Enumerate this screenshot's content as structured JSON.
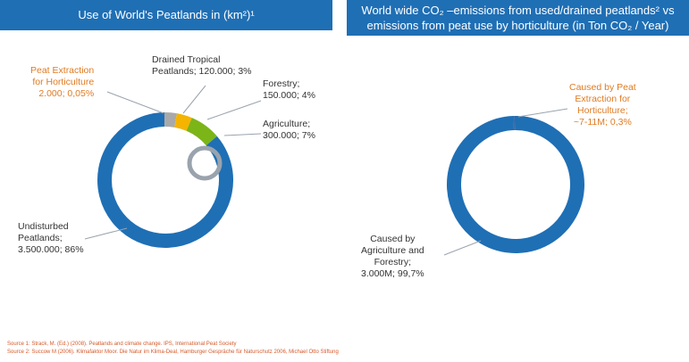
{
  "colors": {
    "title_bg": "#1f6fb5",
    "undisturbed": "#1f6fb5",
    "peat_extraction": "#3b6ea5",
    "drained_tropical": "#a9a9a9",
    "forestry": "#f4b400",
    "agriculture": "#7cb518",
    "highlight_text": "#e07b22",
    "source_text": "#d65a2a"
  },
  "chart_data": [
    {
      "type": "pie",
      "variant": "donut",
      "title_lines": [
        "Use of World's Peatlands in (km²)¹"
      ],
      "labels": [
        "Undisturbed Peatlands",
        "Peat Extraction for Horticulture",
        "Drained Tropical Peatlands",
        "Forestry",
        "Agriculture"
      ],
      "values": [
        3500000,
        2000,
        120000,
        150000,
        300000
      ],
      "percent_labels": [
        "86%",
        "0,05%",
        "3%",
        "4%",
        "7%"
      ],
      "annotations": [
        {
          "slice": "undisturbed",
          "lines": [
            "Undisturbed",
            "Peatlands;",
            "3.500.000; 86%"
          ]
        },
        {
          "slice": "peat_extraction",
          "lines": [
            "Peat Extraction",
            "for Horticulture",
            "2.000; 0,05%"
          ]
        },
        {
          "slice": "drained_tropical",
          "lines": [
            "Drained Tropical",
            "Peatlands; 120.000; 3%"
          ]
        },
        {
          "slice": "forestry",
          "lines": [
            "Forestry;",
            "150.000; 4%"
          ]
        },
        {
          "slice": "agriculture",
          "lines": [
            "Agriculture;",
            "300.000; 7%"
          ]
        }
      ]
    },
    {
      "type": "pie",
      "variant": "donut",
      "title_lines": [
        "World wide CO₂ –emissions from used/drained peatlands² vs",
        "emissions from peat use by horticulture (in Ton CO₂ / Year)"
      ],
      "labels": [
        "Caused by Agriculture and Forestry",
        "Caused by Peat Extraction for Horticulture"
      ],
      "values": [
        99.7,
        0.3
      ],
      "percent_labels": [
        "99,7%",
        "0,3%"
      ],
      "annotations": [
        {
          "slice": "agri_forestry",
          "lines": [
            "Caused by",
            "Agriculture and",
            "Forestry;",
            "3.000M; 99,7%"
          ]
        },
        {
          "slice": "peat_extraction",
          "lines": [
            "Caused by Peat",
            "Extraction for",
            "Horticulture;",
            "~7-11M; 0,3%"
          ]
        }
      ]
    }
  ],
  "sources": [
    "Source 1: Strack, M. (Ed.) (2008). Peatlands and climate change. IPS, International Peat Society",
    "Source 2: Succow M (2006). Klimafaktor Moor. Die Natur im Klima-Deal, Hamburger Gespräche für Naturschutz 2006, Michael Otto Stiftung"
  ]
}
